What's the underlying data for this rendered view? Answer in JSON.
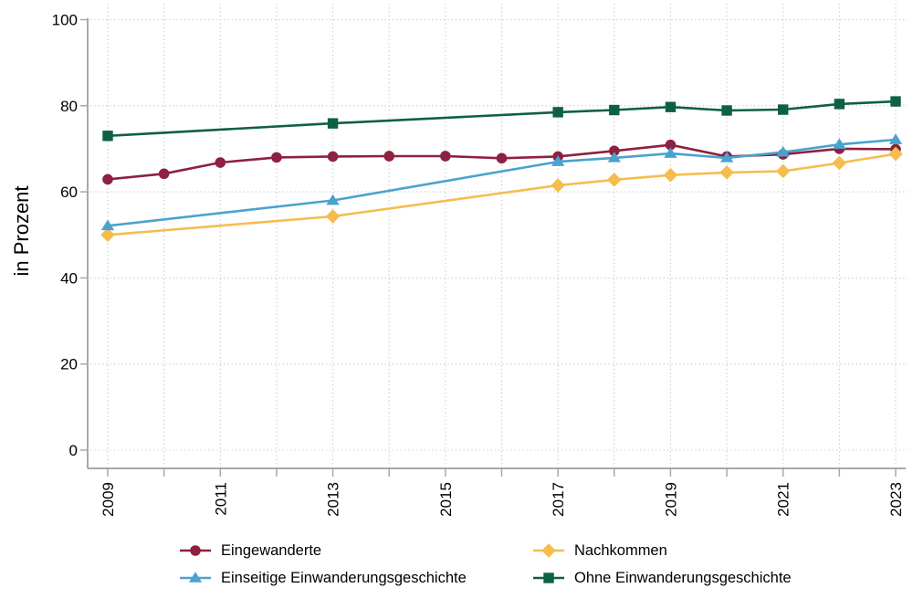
{
  "chart_data": {
    "type": "line",
    "title": "",
    "xlabel": "",
    "ylabel": "in Prozent",
    "ylim": [
      0,
      100
    ],
    "yticks": [
      0,
      20,
      40,
      60,
      80,
      100
    ],
    "xlim": [
      2009,
      2023
    ],
    "xticks_every_year": [
      2009,
      2010,
      2011,
      2012,
      2013,
      2014,
      2015,
      2016,
      2017,
      2018,
      2019,
      2020,
      2021,
      2022,
      2023
    ],
    "xtick_labels": [
      "2009",
      "2011",
      "2013",
      "2015",
      "2017",
      "2019",
      "2021",
      "2023"
    ],
    "grid": "dotted horizontal and vertical gridlines",
    "legend_position": "bottom, two columns, two rows",
    "colors": {
      "grid": "#c8c8c8",
      "axis": "#a8a8a8",
      "text": "#000000",
      "background": "#ffffff"
    },
    "series": [
      {
        "name": "Eingewanderte",
        "color": "#8e2040",
        "marker": "circle",
        "points": [
          [
            2009,
            62.9
          ],
          [
            2010,
            64.2
          ],
          [
            2011,
            66.8
          ],
          [
            2012,
            68.0
          ],
          [
            2013,
            68.2
          ],
          [
            2014,
            68.3
          ],
          [
            2015,
            68.3
          ],
          [
            2016,
            67.8
          ],
          [
            2017,
            68.2
          ],
          [
            2018,
            69.5
          ],
          [
            2019,
            70.9
          ],
          [
            2020,
            68.2
          ],
          [
            2021,
            68.7
          ],
          [
            2022,
            70.0
          ],
          [
            2023,
            69.9
          ]
        ]
      },
      {
        "name": "Nachkommen",
        "color": "#f5bd4e",
        "marker": "diamond",
        "points": [
          [
            2009,
            50.0
          ],
          [
            2013,
            54.3
          ],
          [
            2017,
            61.5
          ],
          [
            2018,
            62.8
          ],
          [
            2019,
            63.9
          ],
          [
            2020,
            64.5
          ],
          [
            2021,
            64.8
          ],
          [
            2022,
            66.7
          ],
          [
            2023,
            68.8
          ]
        ]
      },
      {
        "name": "Einseitige Einwanderungsgeschichte",
        "color": "#4aa2ce",
        "marker": "triangle",
        "points": [
          [
            2009,
            52.1
          ],
          [
            2013,
            58.0
          ],
          [
            2017,
            67.0
          ],
          [
            2018,
            67.9
          ],
          [
            2019,
            68.9
          ],
          [
            2020,
            67.9
          ],
          [
            2021,
            69.2
          ],
          [
            2022,
            71.0
          ],
          [
            2023,
            72.1
          ]
        ]
      },
      {
        "name": "Ohne Einwanderungsgeschichte",
        "color": "#0e6044",
        "marker": "square",
        "points": [
          [
            2009,
            73.0
          ],
          [
            2013,
            75.9
          ],
          [
            2017,
            78.5
          ],
          [
            2018,
            79.0
          ],
          [
            2019,
            79.7
          ],
          [
            2020,
            78.9
          ],
          [
            2021,
            79.1
          ],
          [
            2022,
            80.4
          ],
          [
            2023,
            81.0
          ]
        ]
      }
    ]
  }
}
